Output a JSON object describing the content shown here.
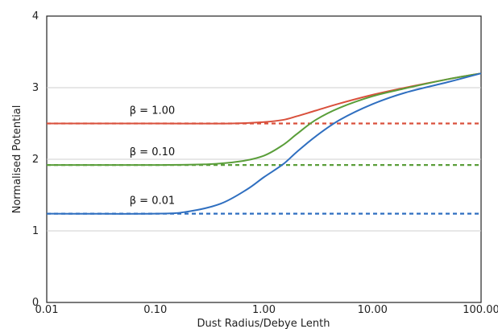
{
  "chart_data": {
    "type": "line",
    "title": "",
    "xlabel": "Dust Radius/Debye Lenth",
    "ylabel": "Normalised Potential",
    "xscale": "log",
    "xlim": [
      0.01,
      100
    ],
    "ylim": [
      0,
      4
    ],
    "x_ticks": [
      "0.01",
      "0.10",
      "1.00",
      "10.00",
      "100.00"
    ],
    "y_ticks": [
      "0",
      "1",
      "2",
      "3",
      "4"
    ],
    "grid": "horizontal",
    "series": [
      {
        "name": "β = 1.00",
        "color": "#d9503c",
        "asymptote": 2.5,
        "x": [
          0.01,
          0.1,
          0.5,
          1.0,
          1.5,
          2.0,
          3.0,
          5.0,
          10.0,
          20.0,
          50.0,
          100.0
        ],
        "y": [
          2.5,
          2.5,
          2.5,
          2.52,
          2.55,
          2.6,
          2.68,
          2.78,
          2.9,
          3.0,
          3.12,
          3.2
        ]
      },
      {
        "name": "β = 0.10",
        "color": "#5a9e3a",
        "asymptote": 1.92,
        "x": [
          0.01,
          0.1,
          0.3,
          0.6,
          1.0,
          1.5,
          2.0,
          3.0,
          5.0,
          10.0,
          20.0,
          50.0,
          100.0
        ],
        "y": [
          1.92,
          1.92,
          1.93,
          1.97,
          2.05,
          2.2,
          2.35,
          2.55,
          2.72,
          2.88,
          2.99,
          3.12,
          3.2
        ]
      },
      {
        "name": "β = 0.01",
        "color": "#2f6fc0",
        "asymptote": 1.24,
        "x": [
          0.01,
          0.1,
          0.2,
          0.4,
          0.7,
          1.0,
          1.5,
          2.0,
          3.0,
          5.0,
          10.0,
          20.0,
          50.0,
          100.0
        ],
        "y": [
          1.24,
          1.24,
          1.27,
          1.38,
          1.58,
          1.75,
          1.93,
          2.1,
          2.32,
          2.55,
          2.77,
          2.93,
          3.08,
          3.2
        ]
      }
    ]
  }
}
